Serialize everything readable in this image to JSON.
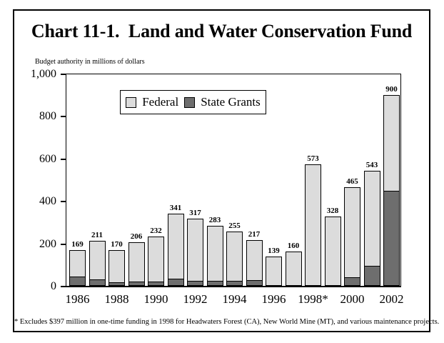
{
  "title": "Chart 11-1.  Land and Water Conservation Fund",
  "subtitle": "Budget authority in millions of dollars",
  "footnote": "* Excludes $397 million in one-time funding in 1998 for Headwaters Forest (CA), New World Mine (MT), and various maintenance projects.",
  "legend": {
    "items": [
      {
        "label": "Federal",
        "color": "#dcdcdc"
      },
      {
        "label": "State Grants",
        "color": "#6e6e6e"
      }
    ]
  },
  "colors": {
    "federal": "#dcdcdc",
    "state": "#6e6e6e",
    "axis": "#000000",
    "background": "#ffffff"
  },
  "chart_data": {
    "type": "bar",
    "stacked": true,
    "title": "Chart 11-1. Land and Water Conservation Fund",
    "ylabel": "Budget authority in millions of dollars",
    "xlabel": "",
    "ylim": [
      0,
      1000
    ],
    "grid": false,
    "legend_position": "top-left-inside",
    "categories": [
      "1986",
      "1987",
      "1988",
      "1989",
      "1990",
      "1991",
      "1992",
      "1993",
      "1994",
      "1995",
      "1996",
      "1997",
      "1998",
      "1999",
      "2000",
      "2001",
      "2002"
    ],
    "x_tick_labels": [
      "1986",
      "1988",
      "1990",
      "1992",
      "1994",
      "1996",
      "1998*",
      "2000",
      "2002"
    ],
    "y_ticks": [
      0,
      200,
      400,
      600,
      800,
      1000
    ],
    "y_tick_labels": [
      "0",
      "200",
      "400",
      "600",
      "800",
      "1,000"
    ],
    "totals": [
      169,
      211,
      170,
      206,
      232,
      341,
      317,
      283,
      255,
      217,
      139,
      160,
      573,
      328,
      465,
      543,
      900
    ],
    "bar_value_labels": [
      "169",
      "211",
      "170",
      "206",
      "232",
      "341",
      "317",
      "283",
      "255",
      "217",
      "139",
      "160",
      "573",
      "328",
      "465",
      "543",
      "900"
    ],
    "series": [
      {
        "name": "Federal",
        "color": "#dcdcdc",
        "values": [
          129,
          184,
          155,
          189,
          215,
          311,
          298,
          264,
          236,
          192,
          139,
          160,
          573,
          328,
          428,
          453,
          454
        ]
      },
      {
        "name": "State Grants",
        "color": "#6e6e6e",
        "values": [
          40,
          27,
          15,
          17,
          17,
          30,
          19,
          19,
          19,
          25,
          0,
          0,
          0,
          0,
          37,
          90,
          446
        ]
      }
    ],
    "footnote": "* Excludes $397 million in one-time funding in 1998 for Headwaters Forest (CA), New World Mine (MT), and various maintenance projects."
  }
}
